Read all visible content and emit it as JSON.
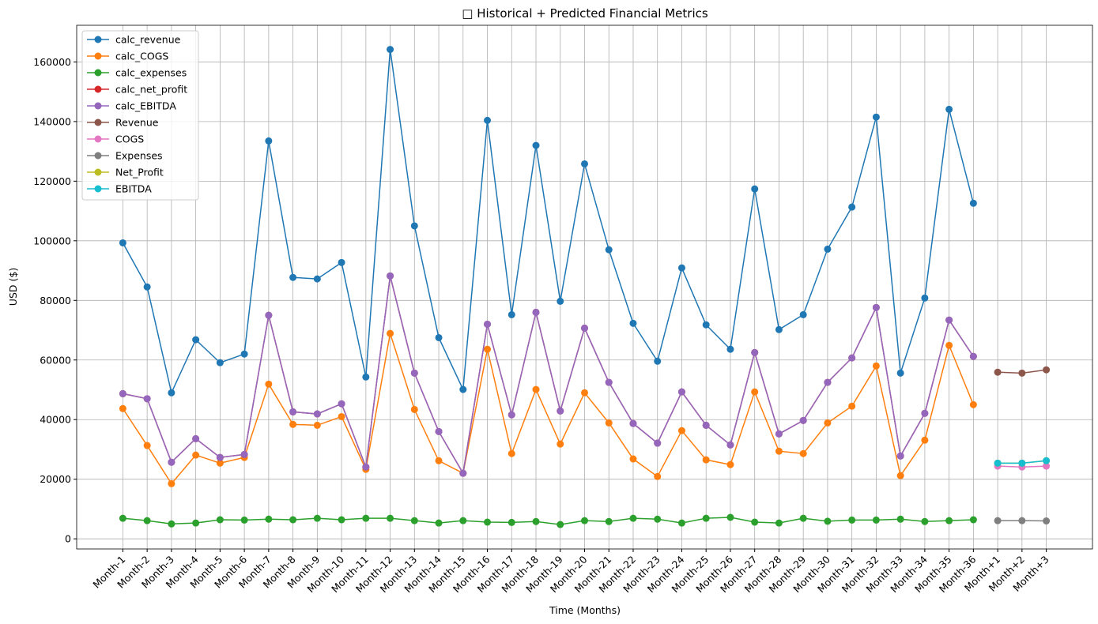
{
  "chart_data": {
    "type": "line",
    "title": "□ Historical + Predicted Financial Metrics",
    "x_label": "Time (Months)",
    "y_label": "USD ($)",
    "categories": [
      "Month-1",
      "Month-2",
      "Month-3",
      "Month-4",
      "Month-5",
      "Month-6",
      "Month-7",
      "Month-8",
      "Month-9",
      "Month-10",
      "Month-11",
      "Month-12",
      "Month-13",
      "Month-14",
      "Month-15",
      "Month-16",
      "Month-17",
      "Month-18",
      "Month-19",
      "Month-20",
      "Month-21",
      "Month-22",
      "Month-23",
      "Month-24",
      "Month-25",
      "Month-26",
      "Month-27",
      "Month-28",
      "Month-29",
      "Month-30",
      "Month-31",
      "Month-32",
      "Month-33",
      "Month-34",
      "Month-35",
      "Month-36",
      "Month+1",
      "Month+2",
      "Month+3"
    ],
    "series": [
      {
        "name": "calc_revenue",
        "color": "#1f77b4",
        "values": [
          99300,
          84500,
          49000,
          66800,
          59100,
          62000,
          133500,
          87700,
          87200,
          92700,
          54300,
          164200,
          105000,
          67500,
          50100,
          140400,
          75200,
          132000,
          79700,
          125800,
          97000,
          72300,
          59600,
          90900,
          71800,
          63600,
          117400,
          70200,
          75200,
          97200,
          111300,
          141500,
          55600,
          80800,
          144100,
          112600,
          null,
          null,
          null
        ]
      },
      {
        "name": "calc_COGS",
        "color": "#ff7f0e",
        "values": [
          43700,
          31300,
          18500,
          28100,
          25400,
          27300,
          51900,
          38400,
          38100,
          41000,
          23300,
          68900,
          43400,
          26200,
          22000,
          63600,
          28600,
          50100,
          31800,
          49000,
          38900,
          26800,
          20900,
          36300,
          26500,
          24900,
          49300,
          29400,
          28600,
          38900,
          44500,
          58000,
          21200,
          33100,
          64900,
          45000,
          null,
          null,
          null
        ]
      },
      {
        "name": "calc_expenses",
        "color": "#2ca02c",
        "values": [
          6900,
          6100,
          5000,
          5300,
          6400,
          6300,
          6600,
          6400,
          6900,
          6400,
          6900,
          6900,
          6100,
          5300,
          6100,
          5600,
          5500,
          5800,
          4800,
          6100,
          5800,
          6900,
          6600,
          5300,
          6900,
          7200,
          5600,
          5300,
          6900,
          5900,
          6300,
          6300,
          6600,
          5800,
          6100,
          6400,
          null,
          null,
          null
        ]
      },
      {
        "name": "calc_net_profit",
        "color": "#d62728",
        "values": [
          48700,
          47000,
          25700,
          33600,
          27300,
          28300,
          75000,
          42600,
          41900,
          45300,
          24100,
          88200,
          55600,
          36000,
          22000,
          72000,
          41600,
          76000,
          42900,
          70700,
          52500,
          38700,
          32100,
          49300,
          38100,
          31500,
          62500,
          35200,
          39700,
          52500,
          60700,
          77600,
          27800,
          42100,
          73400,
          61200,
          null,
          null,
          null
        ]
      },
      {
        "name": "calc_EBITDA",
        "color": "#9467bd",
        "values": [
          48700,
          47000,
          25700,
          33600,
          27300,
          28300,
          75000,
          42600,
          41900,
          45300,
          24100,
          88200,
          55600,
          36000,
          22000,
          72000,
          41600,
          76000,
          42900,
          70700,
          52500,
          38700,
          32100,
          49300,
          38100,
          31500,
          62500,
          35200,
          39700,
          52500,
          60700,
          77600,
          27800,
          42100,
          73400,
          61200,
          null,
          null,
          null
        ]
      },
      {
        "name": "Revenue",
        "color": "#8c564b",
        "values": [
          null,
          null,
          null,
          null,
          null,
          null,
          null,
          null,
          null,
          null,
          null,
          null,
          null,
          null,
          null,
          null,
          null,
          null,
          null,
          null,
          null,
          null,
          null,
          null,
          null,
          null,
          null,
          null,
          null,
          null,
          null,
          null,
          null,
          null,
          null,
          null,
          55900,
          55600,
          56700
        ]
      },
      {
        "name": "COGS",
        "color": "#e377c2",
        "values": [
          null,
          null,
          null,
          null,
          null,
          null,
          null,
          null,
          null,
          null,
          null,
          null,
          null,
          null,
          null,
          null,
          null,
          null,
          null,
          null,
          null,
          null,
          null,
          null,
          null,
          null,
          null,
          null,
          null,
          null,
          null,
          null,
          null,
          null,
          null,
          null,
          24400,
          24100,
          24400
        ]
      },
      {
        "name": "Expenses",
        "color": "#7f7f7f",
        "values": [
          null,
          null,
          null,
          null,
          null,
          null,
          null,
          null,
          null,
          null,
          null,
          null,
          null,
          null,
          null,
          null,
          null,
          null,
          null,
          null,
          null,
          null,
          null,
          null,
          null,
          null,
          null,
          null,
          null,
          null,
          null,
          null,
          null,
          null,
          null,
          null,
          6100,
          6100,
          6000
        ]
      },
      {
        "name": "Net_Profit",
        "color": "#bcbd22",
        "values": [
          null,
          null,
          null,
          null,
          null,
          null,
          null,
          null,
          null,
          null,
          null,
          null,
          null,
          null,
          null,
          null,
          null,
          null,
          null,
          null,
          null,
          null,
          null,
          null,
          null,
          null,
          null,
          null,
          null,
          null,
          null,
          null,
          null,
          null,
          null,
          null,
          25400,
          25400,
          26200
        ]
      },
      {
        "name": "EBITDA",
        "color": "#17becf",
        "values": [
          null,
          null,
          null,
          null,
          null,
          null,
          null,
          null,
          null,
          null,
          null,
          null,
          null,
          null,
          null,
          null,
          null,
          null,
          null,
          null,
          null,
          null,
          null,
          null,
          null,
          null,
          null,
          null,
          null,
          null,
          null,
          null,
          null,
          null,
          null,
          null,
          25400,
          25400,
          26200
        ]
      }
    ],
    "ylim": [
      -3400,
      172300
    ],
    "yticks": [
      0,
      20000,
      40000,
      60000,
      80000,
      100000,
      120000,
      140000,
      160000
    ],
    "grid": true,
    "legend": "upper left"
  }
}
